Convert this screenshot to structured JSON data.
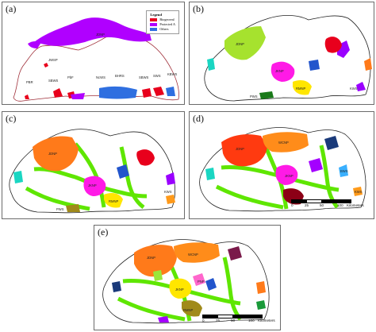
{
  "panels": [
    {
      "label": "(a)"
    },
    {
      "label": "(b)"
    },
    {
      "label": "(c)"
    },
    {
      "label": "(d)"
    },
    {
      "label": "(e)"
    }
  ],
  "legend": {
    "title": "Legend",
    "items": [
      {
        "label": "Biogeoreal",
        "color": "#e8001c"
      },
      {
        "label": "Protected A",
        "color": "#b000ff"
      },
      {
        "label": "Others",
        "color": "#2f6fe0"
      }
    ]
  },
  "area_labels": {
    "jdnp": "JDNP",
    "jsws": "JSWS",
    "wcnp": "WCNP",
    "tsnp": "TSNP",
    "rmnp": "RMNP",
    "pws": "PWS",
    "kws": "KWS",
    "sws": "SWS",
    "bws": "BWS",
    "pnp": "PNP",
    "jknp": "JKNP",
    "bwr": "BWR",
    "sws_a": "SBWS",
    "bhrs": "BHRS",
    "ncws": "NcWS",
    "sbws": "SBWS",
    "kbws": "KBWS",
    "jwsp": "JWSP",
    "pbr": "PBR",
    "pbf": "PbF"
  },
  "scale": {
    "ticks": [
      "0",
      "25",
      "50",
      "100"
    ],
    "unit": "Kilometers"
  },
  "colors": {
    "corridor": "#5fe600",
    "jdnp": "#ff7a1a",
    "jdnp_d": "#ff3a10",
    "wcnp": "#ff8c1a",
    "jsws": "#3ea63e",
    "purple": "#a400ff",
    "magenta": "#ff1ae6",
    "yellow": "#ffe600",
    "blue": "#2255cc",
    "teal": "#1ad6c2",
    "darkred": "#8c0016",
    "olive": "#a08a1a",
    "navy": "#1a3a7a",
    "plum": "#7a1a4a",
    "pink": "#ff66cc",
    "lime": "#9be63a",
    "red": "#e8001c",
    "green": "#1a9a3a",
    "orange": "#ff9a1a",
    "cyan": "#1ad6e6",
    "sky": "#3ab0ff"
  }
}
